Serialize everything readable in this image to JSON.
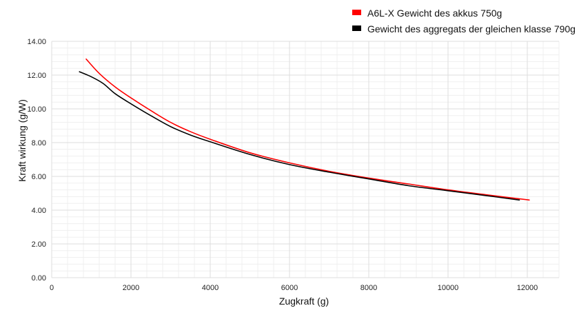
{
  "chart_data": {
    "type": "line",
    "title": "",
    "xlabel": "Zugkraft (g)",
    "ylabel": "Kraft wirkung (g/W)",
    "xlim": [
      0,
      12800
    ],
    "ylim": [
      0,
      14
    ],
    "xticks": [
      0,
      2000,
      4000,
      6000,
      8000,
      10000,
      12000
    ],
    "xtick_labels": [
      "0",
      "2000",
      "4000",
      "6000",
      "8000",
      "10000",
      "12000"
    ],
    "yticks": [
      0,
      2,
      4,
      6,
      8,
      10,
      12,
      14
    ],
    "ytick_labels": [
      "0.00",
      "2.00",
      "4.00",
      "6.00",
      "8.00",
      "10.00",
      "12.00",
      "14.00"
    ],
    "grid": true,
    "legend": "top-right",
    "series": [
      {
        "name": "A6L-X Gewicht des akkus 750g",
        "color": "#ff0000",
        "x": [
          870,
          1200,
          1600,
          2000,
          2500,
          3000,
          3500,
          4000,
          5000,
          6000,
          7000,
          8000,
          9000,
          10000,
          11000,
          12050
        ],
        "y": [
          12.95,
          12.1,
          11.3,
          10.65,
          9.9,
          9.2,
          8.65,
          8.2,
          7.4,
          6.8,
          6.3,
          5.9,
          5.55,
          5.2,
          4.9,
          4.6
        ]
      },
      {
        "name": "Gewicht des aggregats der gleichen klasse 790g",
        "color": "#000000",
        "x": [
          700,
          1000,
          1300,
          1600,
          2000,
          2500,
          3000,
          3500,
          4000,
          5000,
          6000,
          7000,
          8000,
          9000,
          10000,
          11000,
          11800
        ],
        "y": [
          12.2,
          11.9,
          11.5,
          10.9,
          10.3,
          9.6,
          8.95,
          8.45,
          8.05,
          7.3,
          6.7,
          6.25,
          5.85,
          5.45,
          5.15,
          4.85,
          4.6
        ]
      }
    ]
  }
}
